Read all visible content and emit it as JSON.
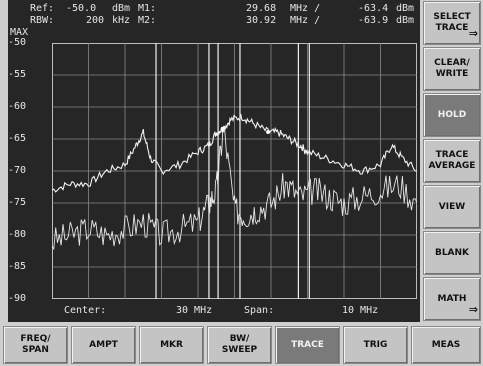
{
  "header": {
    "ref_label": "Ref:",
    "ref_value": "-50.0",
    "ref_unit": "dBm",
    "m1_label": "M1:",
    "m1_freq": "29.68",
    "m1_freq_unit": "MHz /",
    "m1_level": "-63.4",
    "m1_level_unit": "dBm",
    "max_label": "MAX",
    "rbw_label": "RBW:",
    "rbw_value": "200",
    "rbw_unit": "kHz",
    "m2_label": "M2:",
    "m2_freq": "30.92",
    "m2_freq_unit": "MHz /",
    "m2_level": "-63.9",
    "m2_level_unit": "dBm"
  },
  "footer": {
    "center_label": "Center:",
    "center_value": "30 MHz",
    "span_label": "Span:",
    "span_value": "10 MHz"
  },
  "softkeys": [
    {
      "label": "SELECT\nTRACE",
      "arrow": "⇒",
      "active": false
    },
    {
      "label": "CLEAR/\nWRITE",
      "arrow": "",
      "active": false
    },
    {
      "label": "HOLD",
      "arrow": "",
      "active": true
    },
    {
      "label": "TRACE\nAVERAGE",
      "arrow": "",
      "active": false
    },
    {
      "label": "VIEW",
      "arrow": "",
      "active": false
    },
    {
      "label": "BLANK",
      "arrow": "",
      "active": false
    },
    {
      "label": "MATH",
      "arrow": "⇒",
      "active": false
    }
  ],
  "menu": [
    {
      "label": "FREQ/\nSPAN",
      "active": false
    },
    {
      "label": "AMPT",
      "active": false
    },
    {
      "label": "MKR",
      "active": false
    },
    {
      "label": "BW/\nSWEEP",
      "active": false
    },
    {
      "label": "TRACE",
      "active": true
    },
    {
      "label": "TRIG",
      "active": false
    },
    {
      "label": "MEAS",
      "active": false
    }
  ],
  "chart_data": {
    "type": "line",
    "title": "",
    "xlabel": "",
    "ylabel": "",
    "x_unit": "MHz",
    "y_unit": "dBm",
    "xlim": [
      25,
      35
    ],
    "ylim": [
      -90,
      -50
    ],
    "y_ticks": [
      "-50",
      "-55",
      "-60",
      "-65",
      "-70",
      "-75",
      "-80",
      "-85",
      "-90"
    ],
    "grid": true,
    "series": [
      {
        "values_x": [
          25.0,
          25.5,
          26.0,
          26.5,
          27.0,
          27.3,
          27.5,
          27.7,
          28.0,
          28.5,
          29.0,
          29.3,
          29.5,
          29.68,
          29.9,
          30.2,
          30.5,
          30.92,
          31.2,
          31.5,
          31.8,
          32.0,
          32.5,
          33.0,
          33.5,
          34.0,
          34.3,
          34.6,
          35.0
        ],
        "values": [
          -73,
          -72,
          -72,
          -70,
          -69,
          -66,
          -64,
          -68,
          -70,
          -69,
          -67,
          -66,
          -64,
          -63.4,
          -62,
          -61.5,
          -62.5,
          -63.9,
          -64,
          -65,
          -66,
          -67,
          -68,
          -69,
          -70,
          -69,
          -66,
          -68,
          -70
        ]
      },
      {
        "values_x": [
          25.0,
          25.5,
          26.0,
          26.5,
          27.0,
          27.5,
          28.0,
          28.5,
          29.0,
          29.3,
          29.5,
          29.7,
          30.0,
          30.3,
          30.6,
          31.0,
          31.4,
          31.8,
          32.2,
          32.6,
          33.0,
          33.5,
          34.0,
          34.5,
          35.0
        ],
        "values": [
          -81,
          -80,
          -79,
          -80,
          -79,
          -78,
          -80,
          -79,
          -78,
          -75,
          -73,
          -63,
          -76,
          -77,
          -76,
          -75,
          -72,
          -74,
          -73,
          -74,
          -75,
          -74,
          -73,
          -72,
          -75
        ]
      }
    ],
    "markers": [
      {
        "name": "M1",
        "x": 29.68,
        "y": -63.4
      },
      {
        "name": "M2",
        "x": 30.92,
        "y": -63.9
      }
    ],
    "vertical_lines_x": [
      27.85,
      29.3,
      29.55,
      30.15,
      31.75,
      32.05
    ]
  }
}
